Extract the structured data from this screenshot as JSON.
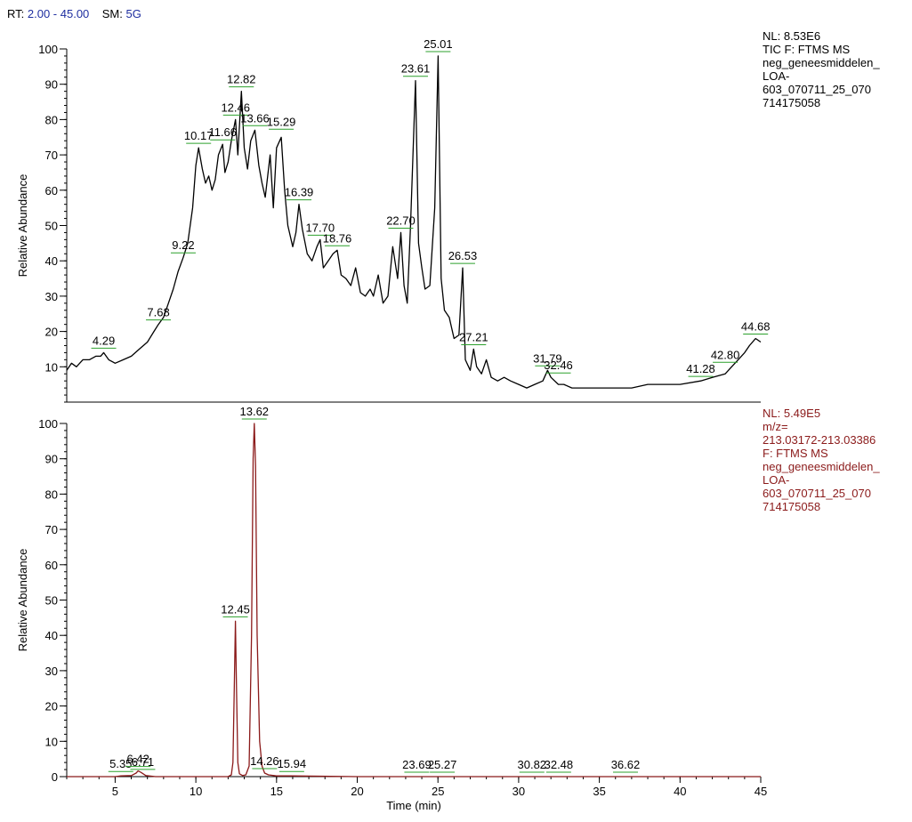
{
  "header": {
    "rt_label": "RT:",
    "rt_range": "2.00 - 45.00",
    "sm_label": "SM:",
    "sm_value": "5G"
  },
  "colors": {
    "trace_top": "#000000",
    "trace_bottom": "#8b1a1a",
    "label_leader": "#2ca02c",
    "header_value": "#1f2fa0"
  },
  "chart_data": [
    {
      "type": "line",
      "ylabel": "Relative Abundance",
      "xlabel": "",
      "xlim": [
        2,
        45
      ],
      "ylim": [
        0,
        100
      ],
      "yticks": [
        10,
        20,
        30,
        40,
        50,
        60,
        70,
        80,
        90,
        100
      ],
      "info_lines": [
        "NL: 8.53E6",
        "TIC F: FTMS   MS",
        "neg_geneesmiddelen_",
        "LOA-",
        "603_070711_25_070",
        "714175058"
      ],
      "series": [
        {
          "x": [
            2.0,
            2.3,
            2.6,
            3.0,
            3.4,
            3.8,
            4.1,
            4.29,
            4.6,
            5.0,
            5.5,
            6.0,
            6.5,
            7.0,
            7.4,
            7.68,
            8.0,
            8.3,
            8.6,
            8.9,
            9.22,
            9.5,
            9.8,
            10.0,
            10.17,
            10.4,
            10.6,
            10.8,
            11.0,
            11.2,
            11.4,
            11.66,
            11.8,
            12.0,
            12.2,
            12.46,
            12.6,
            12.82,
            13.0,
            13.2,
            13.4,
            13.66,
            13.9,
            14.1,
            14.3,
            14.6,
            14.8,
            15.0,
            15.29,
            15.5,
            15.7,
            16.0,
            16.2,
            16.39,
            16.6,
            16.9,
            17.2,
            17.5,
            17.7,
            17.9,
            18.2,
            18.5,
            18.76,
            19.0,
            19.3,
            19.6,
            19.9,
            20.2,
            20.5,
            20.8,
            21.0,
            21.3,
            21.6,
            21.9,
            22.2,
            22.5,
            22.7,
            22.9,
            23.1,
            23.3,
            23.61,
            23.8,
            24.0,
            24.2,
            24.5,
            24.8,
            25.01,
            25.2,
            25.4,
            25.7,
            26.0,
            26.3,
            26.53,
            26.7,
            27.0,
            27.21,
            27.4,
            27.7,
            28.0,
            28.3,
            28.7,
            29.1,
            29.5,
            30.0,
            30.5,
            31.0,
            31.5,
            31.79,
            32.0,
            32.46,
            32.8,
            33.3,
            34.0,
            35.0,
            36.0,
            37.0,
            38.0,
            39.0,
            40.0,
            41.28,
            42.0,
            42.8,
            43.2,
            43.6,
            44.0,
            44.3,
            44.68,
            45.0
          ],
          "y": [
            9,
            11,
            10,
            12,
            12,
            13,
            13,
            14,
            12,
            11,
            12,
            13,
            15,
            17,
            20,
            22,
            24,
            28,
            32,
            37,
            41,
            45,
            55,
            67,
            72,
            66,
            62,
            64,
            60,
            63,
            70,
            73,
            65,
            68,
            74,
            80,
            70,
            88,
            72,
            66,
            74,
            77,
            67,
            62,
            58,
            70,
            55,
            72,
            75,
            60,
            50,
            44,
            48,
            56,
            49,
            42,
            40,
            44,
            46,
            38,
            40,
            42,
            43,
            36,
            35,
            33,
            38,
            31,
            30,
            32,
            30,
            36,
            28,
            30,
            44,
            35,
            48,
            33,
            28,
            50,
            91,
            45,
            38,
            32,
            33,
            55,
            98,
            35,
            26,
            24,
            18,
            19,
            38,
            12,
            9,
            15,
            10,
            8,
            12,
            7,
            6,
            7,
            6,
            5,
            4,
            5,
            6,
            9,
            7,
            5,
            5,
            4,
            4,
            4,
            4,
            4,
            5,
            5,
            5,
            6,
            7,
            8,
            10,
            12,
            14,
            16,
            18,
            17
          ]
        }
      ],
      "peak_labels": [
        {
          "text": "4.29",
          "x": 4.29,
          "y": 14
        },
        {
          "text": "7.68",
          "x": 7.68,
          "y": 22
        },
        {
          "text": "9.22",
          "x": 9.22,
          "y": 41
        },
        {
          "text": "10.17",
          "x": 10.17,
          "y": 72
        },
        {
          "text": "11.66",
          "x": 11.66,
          "y": 73
        },
        {
          "text": "12.46",
          "x": 12.46,
          "y": 80
        },
        {
          "text": "12.82",
          "x": 12.82,
          "y": 88
        },
        {
          "text": "13.66",
          "x": 13.66,
          "y": 77
        },
        {
          "text": "15.29",
          "x": 15.29,
          "y": 76
        },
        {
          "text": "16.39",
          "x": 16.39,
          "y": 56
        },
        {
          "text": "17.70",
          "x": 17.7,
          "y": 46
        },
        {
          "text": "18.76",
          "x": 18.76,
          "y": 43
        },
        {
          "text": "22.70",
          "x": 22.7,
          "y": 48
        },
        {
          "text": "23.61",
          "x": 23.61,
          "y": 91
        },
        {
          "text": "25.01",
          "x": 25.01,
          "y": 98
        },
        {
          "text": "26.53",
          "x": 26.53,
          "y": 38
        },
        {
          "text": "27.21",
          "x": 27.21,
          "y": 15
        },
        {
          "text": "31.79",
          "x": 31.79,
          "y": 9
        },
        {
          "text": "32.46",
          "x": 32.46,
          "y": 7
        },
        {
          "text": "41.28",
          "x": 41.28,
          "y": 6
        },
        {
          "text": "42.80",
          "x": 42.8,
          "y": 10
        },
        {
          "text": "44.68",
          "x": 44.68,
          "y": 18
        }
      ]
    },
    {
      "type": "line",
      "ylabel": "Relative Abundance",
      "xlabel": "Time (min)",
      "xlim": [
        2,
        45
      ],
      "ylim": [
        0,
        100
      ],
      "xticks": [
        5,
        10,
        15,
        20,
        25,
        30,
        35,
        40,
        45
      ],
      "yticks": [
        0,
        10,
        20,
        30,
        40,
        50,
        60,
        70,
        80,
        90,
        100
      ],
      "info_lines": [
        "NL: 5.49E5",
        "m/z=",
        "213.03172-213.03386",
        "F: FTMS   MS",
        "neg_geneesmiddelen_",
        "LOA-",
        "603_070711_25_070",
        "714175058"
      ],
      "series": [
        {
          "x": [
            2.0,
            5.0,
            5.35,
            6.0,
            6.3,
            6.42,
            6.6,
            6.9,
            7.5,
            10.0,
            12.0,
            12.2,
            12.3,
            12.38,
            12.45,
            12.52,
            12.6,
            12.7,
            12.9,
            13.1,
            13.3,
            13.45,
            13.55,
            13.62,
            13.7,
            13.8,
            13.95,
            14.1,
            14.26,
            14.5,
            15.0,
            15.94,
            20.0,
            23.69,
            25.27,
            30.82,
            32.48,
            36.62,
            40.0,
            45.0
          ],
          "y": [
            0,
            0,
            0.2,
            0.3,
            1.0,
            1.6,
            1.2,
            0.3,
            0,
            0,
            0,
            0.5,
            4,
            25,
            44,
            25,
            4,
            0.8,
            0.3,
            0.5,
            3,
            40,
            90,
            100,
            88,
            40,
            10,
            3,
            1,
            0.5,
            0.2,
            0.2,
            0,
            0,
            0,
            0,
            0,
            0,
            0,
            0
          ]
        }
      ],
      "peak_labels": [
        {
          "text": "5.35",
          "x": 5.35,
          "y": 0.2
        },
        {
          "text": "6.42",
          "x": 6.42,
          "y": 1.6
        },
        {
          "text": "6.71",
          "x": 6.71,
          "y": 0.8
        },
        {
          "text": "12.45",
          "x": 12.45,
          "y": 44
        },
        {
          "text": "13.62",
          "x": 13.62,
          "y": 100
        },
        {
          "text": "14.26",
          "x": 14.26,
          "y": 1
        },
        {
          "text": "15.94",
          "x": 15.94,
          "y": 0.2
        },
        {
          "text": "23.69",
          "x": 23.69,
          "y": 0
        },
        {
          "text": "25.27",
          "x": 25.27,
          "y": 0
        },
        {
          "text": "30.82",
          "x": 30.82,
          "y": 0
        },
        {
          "text": "32.48",
          "x": 32.48,
          "y": 0
        },
        {
          "text": "36.62",
          "x": 36.62,
          "y": 0
        }
      ]
    }
  ]
}
